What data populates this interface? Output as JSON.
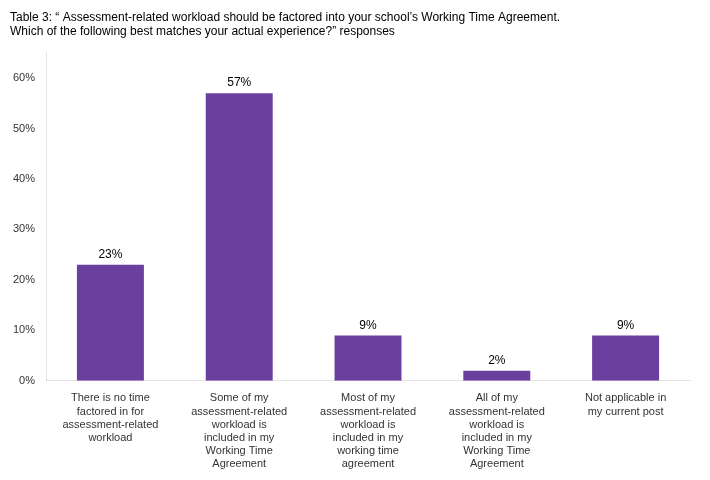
{
  "chart_data": {
    "type": "bar",
    "title": [
      "Table 3: “ Assessment-related workload should be factored into your school’s Working Time Agreement.",
      "Which of the following best matches your actual experience?” responses"
    ],
    "categories": [
      "There is no time\nfactored in for\nassessment-related\nworkload",
      "Some of my\nassessment-related\nworkload is\nincluded in my\nWorking Time\nAgreement",
      "Most of my\nassessment-related\nworkload is\nincluded in my\nworking time\nagreement",
      "All of my\nassessment-related\nworkload is\nincluded in my\nWorking Time\nAgreement",
      "Not applicable in\nmy current post"
    ],
    "values": [
      23,
      57,
      9,
      2,
      9
    ],
    "value_labels": [
      "23%",
      "57%",
      "9%",
      "2%",
      "9%"
    ],
    "data_labels": true,
    "color": "#6B3FA0",
    "ylim": [
      0,
      65
    ],
    "yticks": [
      {
        "value": 0,
        "label": "0%"
      },
      {
        "value": 10,
        "label": "10%"
      },
      {
        "value": 20,
        "label": "20%"
      },
      {
        "value": 30,
        "label": "30%"
      },
      {
        "value": 40,
        "label": "40%"
      },
      {
        "value": 50,
        "label": "50%"
      },
      {
        "value": 60,
        "label": "60%"
      }
    ],
    "grid": false
  }
}
